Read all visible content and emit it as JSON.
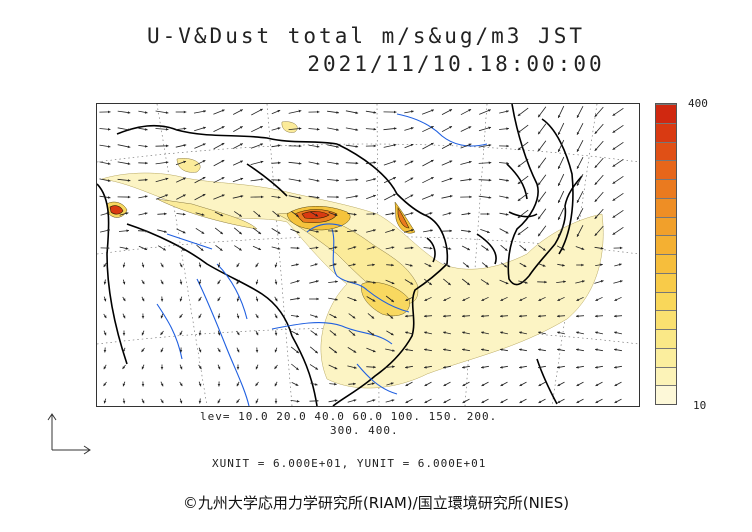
{
  "title": {
    "line1": "U-V&Dust total m/s&ug/m3 JST",
    "line2": "2021/11/10.18:00:00"
  },
  "colorbar": {
    "max_label": "400",
    "min_label": "10",
    "colors": [
      "#fdf8d8",
      "#fcf3b8",
      "#fbee9e",
      "#fae887",
      "#fae070",
      "#f9d75a",
      "#f8cb49",
      "#f6be3c",
      "#f4b032",
      "#f1a02b",
      "#ee8e25",
      "#ea7a1f",
      "#e6661a",
      "#e05016",
      "#d93a12",
      "#d02810"
    ]
  },
  "contour_info": {
    "line1": "lev= 10.0 20.0 40.0 60.0 100. 150. 200.",
    "line2": "300. 400."
  },
  "unit_info": "XUNIT = 6.000E+01, YUNIT = 6.000E+01",
  "copyright": "©九州大学応用力学研究所(RIAM)/国立環境研究所(NIES)",
  "colors": {
    "coastline": "#000000",
    "rivers": "#1f5fe0",
    "grid": "#555555",
    "dust_low": "#fbf0a8",
    "dust_high": "#d93a12"
  }
}
